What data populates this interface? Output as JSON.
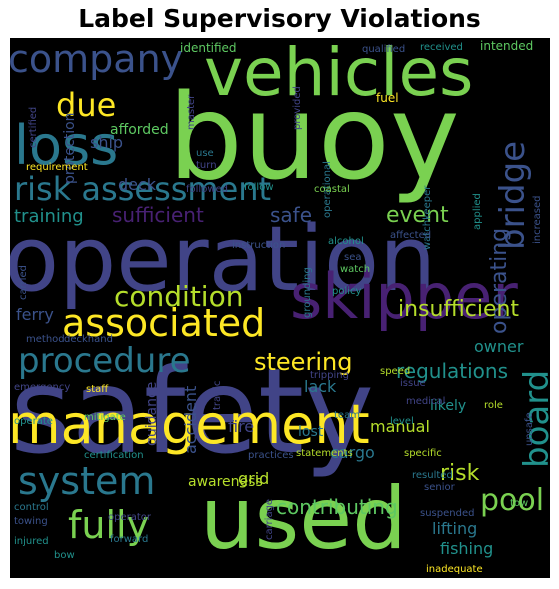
{
  "title": "Label Supervisory Violations",
  "words": [
    {
      "text": "safety",
      "color": "#414487"
    },
    {
      "text": "operation",
      "color": "#414487"
    },
    {
      "text": "buoy",
      "color": "#7ad151"
    },
    {
      "text": "used",
      "color": "#7ad151"
    },
    {
      "text": "management",
      "color": "#fde725"
    },
    {
      "text": "vehicles",
      "color": "#7ad151"
    },
    {
      "text": "skipper",
      "color": "#482173"
    },
    {
      "text": "loss",
      "color": "#2a788e"
    },
    {
      "text": "risk assessment",
      "color": "#2a788e"
    },
    {
      "text": "company",
      "color": "#3b528b"
    },
    {
      "text": "associated",
      "color": "#fde725"
    },
    {
      "text": "system",
      "color": "#2a788e"
    },
    {
      "text": "fully",
      "color": "#7ad151"
    },
    {
      "text": "procedure",
      "color": "#2a788e"
    },
    {
      "text": "board",
      "color": "#21918c"
    },
    {
      "text": "bridge",
      "color": "#3b528b"
    },
    {
      "text": "condition",
      "color": "#b5de2b"
    },
    {
      "text": "due",
      "color": "#fde725"
    },
    {
      "text": "pool",
      "color": "#7ad151"
    },
    {
      "text": "operating",
      "color": "#3b528b"
    },
    {
      "text": "sufficient",
      "color": "#482173"
    },
    {
      "text": "insufficient",
      "color": "#b5de2b"
    },
    {
      "text": "steering",
      "color": "#fde725"
    },
    {
      "text": "event",
      "color": "#7ad151"
    },
    {
      "text": "safe",
      "color": "#3b528b"
    },
    {
      "text": "risk",
      "color": "#b5de2b"
    },
    {
      "text": "regulations",
      "color": "#21918c"
    },
    {
      "text": "contributing",
      "color": "#5ec962"
    },
    {
      "text": "training",
      "color": "#21918c"
    },
    {
      "text": "ship",
      "color": "#3b528b"
    },
    {
      "text": "deck",
      "color": "#3b528b"
    },
    {
      "text": "ferry",
      "color": "#3b528b"
    },
    {
      "text": "lifting",
      "color": "#2a788e"
    },
    {
      "text": "fishing",
      "color": "#21918c"
    },
    {
      "text": "cargo",
      "color": "#2a788e"
    },
    {
      "text": "manual",
      "color": "#b5de2b"
    },
    {
      "text": "lack",
      "color": "#2a788e"
    },
    {
      "text": "owner",
      "color": "#21918c"
    },
    {
      "text": "grid",
      "color": "#b5de2b"
    },
    {
      "text": "accident",
      "color": "#3b528b"
    },
    {
      "text": "guidance",
      "color": "#414487"
    },
    {
      "text": "fire",
      "color": "#414487"
    },
    {
      "text": "lost",
      "color": "#2a788e"
    },
    {
      "text": "likely",
      "color": "#21918c"
    },
    {
      "text": "awareness",
      "color": "#b5de2b"
    },
    {
      "text": "afforded",
      "color": "#5ec962"
    },
    {
      "text": "protection",
      "color": "#3b528b"
    },
    {
      "text": "identified",
      "color": "#5ec962"
    },
    {
      "text": "intended",
      "color": "#5ec962"
    },
    {
      "text": "received",
      "color": "#21918c"
    },
    {
      "text": "qualified",
      "color": "#3b528b"
    },
    {
      "text": "fuel",
      "color": "#fde725"
    },
    {
      "text": "master",
      "color": "#414487"
    },
    {
      "text": "certified",
      "color": "#414487"
    },
    {
      "text": "turn",
      "color": "#414487"
    },
    {
      "text": "use",
      "color": "#2a788e"
    },
    {
      "text": "provided",
      "color": "#414487"
    },
    {
      "text": "operational",
      "color": "#2a788e"
    },
    {
      "text": "watchkeeper",
      "color": "#2a788e"
    },
    {
      "text": "applied",
      "color": "#21918c"
    },
    {
      "text": "increased",
      "color": "#3b528b"
    },
    {
      "text": "requirement",
      "color": "#fde725"
    },
    {
      "text": "followed",
      "color": "#414487"
    },
    {
      "text": "follow",
      "color": "#21918c"
    },
    {
      "text": "coastal",
      "color": "#7ad151"
    },
    {
      "text": "sea",
      "color": "#3b528b"
    },
    {
      "text": "affected",
      "color": "#3b528b"
    },
    {
      "text": "instruction",
      "color": "#3b528b"
    },
    {
      "text": "alcohol",
      "color": "#21918c"
    },
    {
      "text": "watch",
      "color": "#5ec962"
    },
    {
      "text": "policy",
      "color": "#21918c"
    },
    {
      "text": "grounding",
      "color": "#2a788e"
    },
    {
      "text": "method",
      "color": "#3b528b"
    },
    {
      "text": "deckhand",
      "color": "#3b528b"
    },
    {
      "text": "carried",
      "color": "#3b528b"
    },
    {
      "text": "emergency",
      "color": "#414487"
    },
    {
      "text": "staff",
      "color": "#fde725"
    },
    {
      "text": "issue",
      "color": "#414487"
    },
    {
      "text": "speed",
      "color": "#b5de2b"
    },
    {
      "text": "tripping",
      "color": "#414487"
    },
    {
      "text": "mitigate",
      "color": "#5ec962"
    },
    {
      "text": "traffic",
      "color": "#414487"
    },
    {
      "text": "role",
      "color": "#b5de2b"
    },
    {
      "text": "team",
      "color": "#2a788e"
    },
    {
      "text": "level",
      "color": "#21918c"
    },
    {
      "text": "medical",
      "color": "#414487"
    },
    {
      "text": "operate",
      "color": "#21918c"
    },
    {
      "text": "certification",
      "color": "#21918c"
    },
    {
      "text": "practices",
      "color": "#3b528b"
    },
    {
      "text": "statements",
      "color": "#b5de2b"
    },
    {
      "text": "specific",
      "color": "#b5de2b"
    },
    {
      "text": "resulted",
      "color": "#2a788e"
    },
    {
      "text": "senior",
      "color": "#3b528b"
    },
    {
      "text": "tow",
      "color": "#5ec962"
    },
    {
      "text": "suspended",
      "color": "#3b528b"
    },
    {
      "text": "inadequate",
      "color": "#fde725"
    },
    {
      "text": "control",
      "color": "#2a788e"
    },
    {
      "text": "operator",
      "color": "#414487"
    },
    {
      "text": "towing",
      "color": "#3b528b"
    },
    {
      "text": "injured",
      "color": "#21918c"
    },
    {
      "text": "forward",
      "color": "#2a788e"
    },
    {
      "text": "bow",
      "color": "#21918c"
    },
    {
      "text": "carriage",
      "color": "#414487"
    },
    {
      "text": "unsafe",
      "color": "#3b528b"
    }
  ]
}
